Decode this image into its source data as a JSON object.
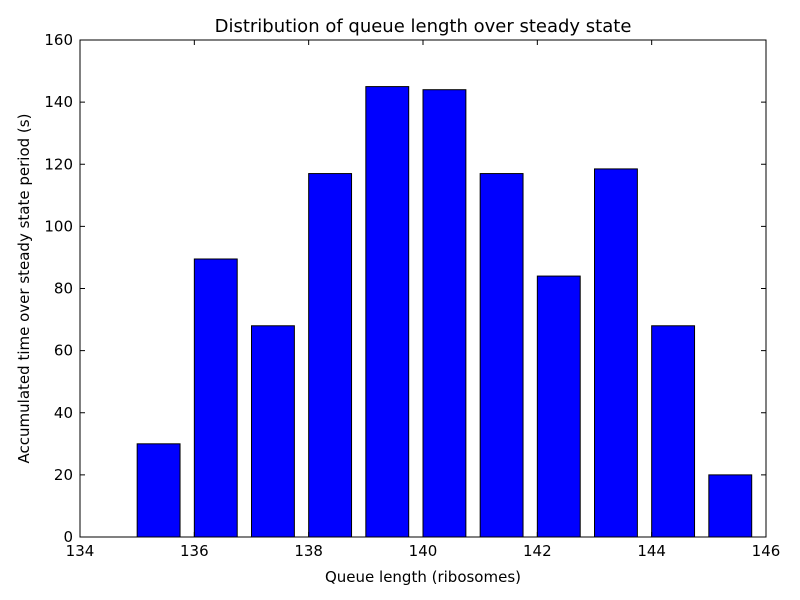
{
  "chart_data": {
    "type": "bar",
    "title": "Distribution of queue length over steady state",
    "xlabel": "Queue length (ribosomes)",
    "ylabel": "Accumulated time over steady state period (s)",
    "xlim": [
      134,
      146
    ],
    "ylim": [
      0,
      160
    ],
    "xticks": [
      134,
      136,
      138,
      140,
      142,
      144,
      146
    ],
    "yticks": [
      0,
      20,
      40,
      60,
      80,
      100,
      120,
      140,
      160
    ],
    "bar_width": 0.75,
    "bar_color": "#0000ff",
    "edge_color": "#000000",
    "grid": false,
    "legend": "none",
    "x": [
      134,
      135,
      136,
      137,
      138,
      139,
      140,
      141,
      142,
      143,
      144,
      145
    ],
    "values": [
      0,
      30,
      89.5,
      68,
      117,
      145,
      144,
      117,
      84,
      118.5,
      68,
      20
    ]
  }
}
